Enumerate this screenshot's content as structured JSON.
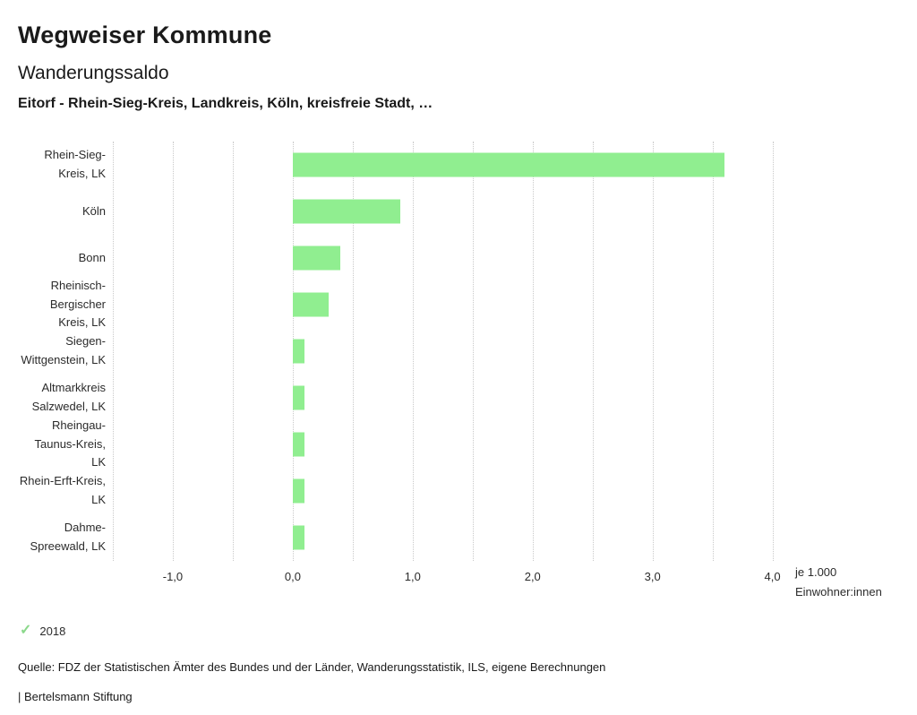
{
  "header": {
    "title": "Wegweiser Kommune",
    "subtitle": "Wanderungssaldo",
    "selection": "Eitorf - Rhein-Sieg-Kreis, Landkreis, Köln, kreisfreie Stadt, …"
  },
  "chart_data": {
    "type": "bar",
    "orientation": "horizontal",
    "title": "Wanderungssaldo",
    "categories": [
      "Rhein-Sieg-Kreis, LK",
      "Köln",
      "Bonn",
      "Rheinisch-Bergischer Kreis, LK",
      "Siegen-Wittgenstein, LK",
      "Altmarkkreis Salzwedel, LK",
      "Rheingau-Taunus-Kreis, LK",
      "Rhein-Erft-Kreis, LK",
      "Dahme-Spreewald, LK"
    ],
    "values": [
      3.6,
      0.9,
      0.4,
      0.3,
      0.1,
      0.1,
      0.1,
      0.1,
      0.1
    ],
    "xlim": [
      -1.5,
      4.1
    ],
    "gridlines": [
      -1.5,
      -1.0,
      -0.5,
      0.0,
      0.5,
      1.0,
      1.5,
      2.0,
      2.5,
      3.0,
      3.5,
      4.0
    ],
    "ticks": [
      -1.0,
      0.0,
      1.0,
      2.0,
      3.0,
      4.0
    ],
    "tick_labels": [
      "-1,0",
      "0,0",
      "1,0",
      "2,0",
      "3,0",
      "4,0"
    ],
    "unit_label": [
      "je 1.000",
      "Einwohner:innen"
    ],
    "bar_color": "#90ee90",
    "grid_color": "#c9c9c9",
    "legend": [
      {
        "label": "2018",
        "color": "#8bd88b"
      }
    ]
  },
  "footer": {
    "source": "Quelle: FDZ der Statistischen Ämter des Bundes und der Länder, Wanderungsstatistik, ILS, eigene Berechnungen",
    "attribution": "| Bertelsmann Stiftung"
  }
}
